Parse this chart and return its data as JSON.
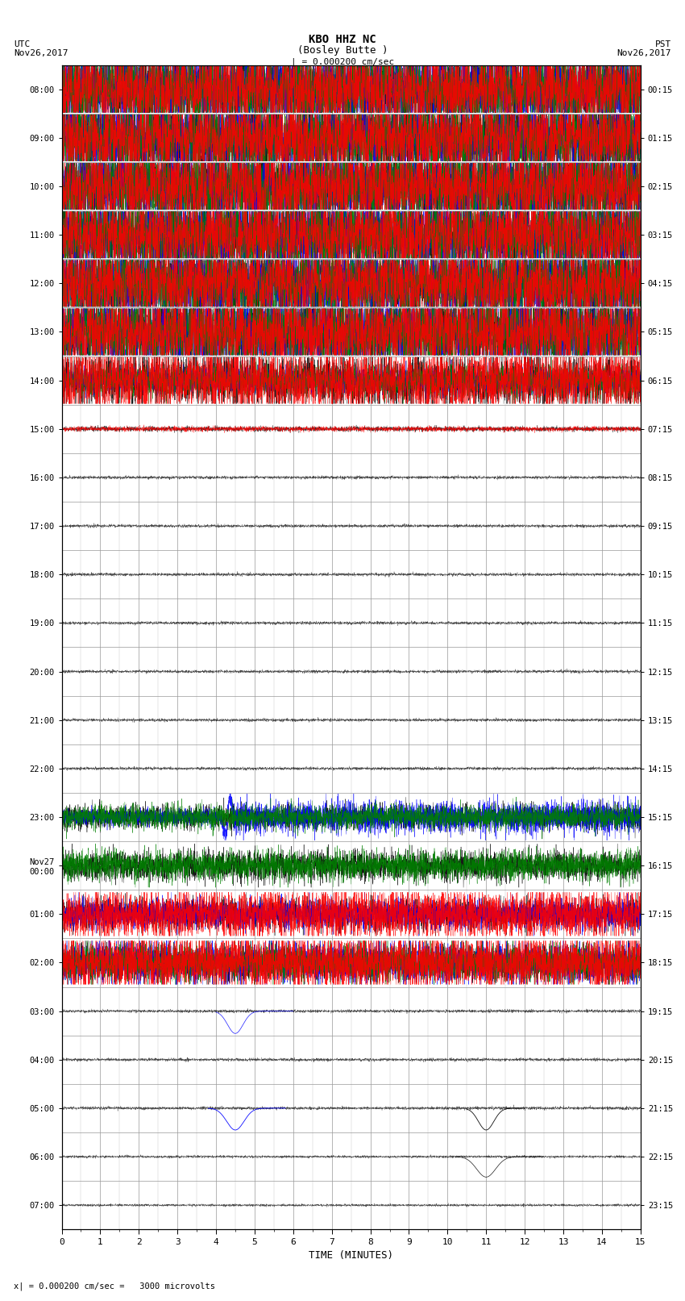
{
  "title_line1": "KBO HHZ NC",
  "title_line2": "(Bosley Butte )",
  "scale_label": "| = 0.000200 cm/sec",
  "left_date_label": "UTC\nNov26,2017",
  "right_date_label": "PST\nNov26,2017",
  "bottom_label": "x| = 0.000200 cm/sec =   3000 microvolts",
  "xlabel": "TIME (MINUTES)",
  "left_times": [
    "08:00",
    "09:00",
    "10:00",
    "11:00",
    "12:00",
    "13:00",
    "14:00",
    "15:00",
    "16:00",
    "17:00",
    "18:00",
    "19:00",
    "20:00",
    "21:00",
    "22:00",
    "23:00",
    "Nov27\n00:00",
    "01:00",
    "02:00",
    "03:00",
    "04:00",
    "05:00",
    "06:00",
    "07:00"
  ],
  "right_times": [
    "00:15",
    "01:15",
    "02:15",
    "03:15",
    "04:15",
    "05:15",
    "06:15",
    "07:15",
    "08:15",
    "09:15",
    "10:15",
    "11:15",
    "12:15",
    "13:15",
    "14:15",
    "15:15",
    "16:15",
    "17:15",
    "18:15",
    "19:15",
    "20:15",
    "21:15",
    "22:15",
    "23:15"
  ],
  "n_rows": 24,
  "n_minutes": 15,
  "bg_color": "#ffffff",
  "trace_colors": [
    "#000000",
    "#0000ff",
    "#008000",
    "#ff0000"
  ],
  "grid_color": "#999999"
}
